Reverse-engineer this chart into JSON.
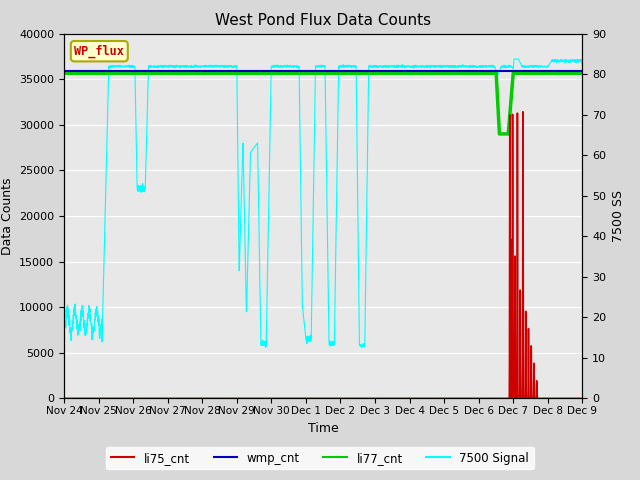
{
  "title": "West Pond Flux Data Counts",
  "xlabel": "Time",
  "ylabel_left": "Data Counts",
  "ylabel_right": "7500 SS",
  "ylim_left": [
    0,
    40000
  ],
  "ylim_right": [
    0,
    90
  ],
  "legend_labels": [
    "li75_cnt",
    "wmp_cnt",
    "li77_cnt",
    "7500 Signal"
  ],
  "legend_colors": [
    "#cc0000",
    "#0000cc",
    "#00cc00",
    "#00cccc"
  ],
  "wp_flux_label": "WP_flux",
  "wp_flux_color": "#cc0000",
  "wp_flux_bg": "#ffffcc",
  "background_color": "#d8d8d8",
  "plot_bg": "#e8e8e8",
  "xtick_labels": [
    "Nov 24",
    "Nov 25",
    "Nov 26",
    "Nov 27",
    "Nov 28",
    "Nov 29",
    "Nov 30",
    "Dec 1",
    "Dec 2",
    "Dec 3",
    "Dec 4",
    "Dec 5",
    "Dec 6",
    "Dec 7",
    "Dec 8",
    "Dec 9"
  ],
  "cyan_base": 36400,
  "li77_base": 35700,
  "wmp_base": 35900,
  "figsize": [
    6.4,
    4.8
  ],
  "dpi": 100
}
